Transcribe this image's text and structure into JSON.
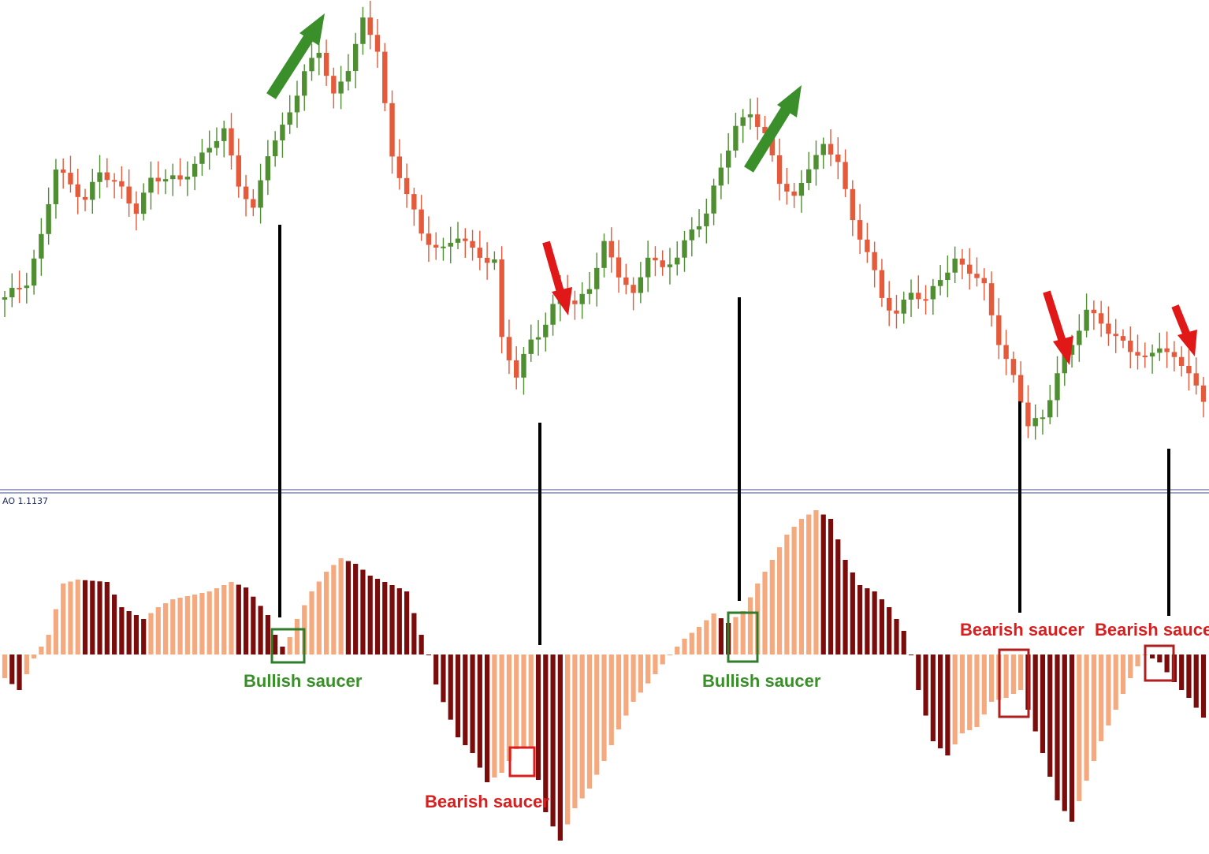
{
  "colors": {
    "bull_candle": "#4f8f32",
    "bear_candle": "#e55a3a",
    "ao_up": "#f4a97f",
    "ao_down": "#7a0c0c",
    "annotation_green": "#3a8f2a",
    "annotation_red": "#d81e1e",
    "separator": "#3b4a8c",
    "indicator_label": "#1a2a6a"
  },
  "indicator": {
    "label": "AO 1.1137"
  },
  "annotations": [
    {
      "name": "bullish-saucer-1",
      "text": "Bullish saucer",
      "kind": "bullish"
    },
    {
      "name": "bearish-saucer-1",
      "text": "Bearish saucer",
      "kind": "bearish"
    },
    {
      "name": "bullish-saucer-2",
      "text": "Bullish saucer",
      "kind": "bullish"
    },
    {
      "name": "bearish-saucer-2",
      "text": "Bearish saucer",
      "kind": "bearish"
    },
    {
      "name": "bearish-saucer-3",
      "text": "Bearish saucer",
      "kind": "bearish"
    }
  ],
  "chart_data": [
    {
      "type": "candlestick",
      "title": "",
      "legend": "none",
      "grid": false,
      "trend_arrows": [
        "up",
        "down",
        "up",
        "down",
        "down"
      ],
      "keyframes": [
        [
          0,
          380
        ],
        [
          3,
          355
        ],
        [
          5,
          300
        ],
        [
          7,
          215
        ],
        [
          9,
          235
        ],
        [
          11,
          250
        ],
        [
          13,
          220
        ],
        [
          16,
          240
        ],
        [
          18,
          265
        ],
        [
          20,
          230
        ],
        [
          24,
          225
        ],
        [
          27,
          200
        ],
        [
          30,
          165
        ],
        [
          32,
          230
        ],
        [
          34,
          270
        ],
        [
          36,
          195
        ],
        [
          38,
          160
        ],
        [
          41,
          95
        ],
        [
          43,
          65
        ],
        [
          45,
          120
        ],
        [
          47,
          85
        ],
        [
          49,
          30
        ],
        [
          51,
          60
        ],
        [
          53,
          200
        ],
        [
          55,
          245
        ],
        [
          57,
          300
        ],
        [
          60,
          315
        ],
        [
          62,
          300
        ],
        [
          64,
          320
        ],
        [
          67,
          330
        ],
        [
          68,
          430
        ],
        [
          70,
          480
        ],
        [
          72,
          430
        ],
        [
          74,
          410
        ],
        [
          76,
          370
        ],
        [
          78,
          390
        ],
        [
          80,
          360
        ],
        [
          82,
          310
        ],
        [
          84,
          350
        ],
        [
          86,
          375
        ],
        [
          88,
          320
        ],
        [
          90,
          345
        ],
        [
          92,
          325
        ],
        [
          94,
          290
        ],
        [
          96,
          270
        ],
        [
          98,
          215
        ],
        [
          100,
          160
        ],
        [
          102,
          140
        ],
        [
          104,
          175
        ],
        [
          106,
          230
        ],
        [
          108,
          250
        ],
        [
          110,
          210
        ],
        [
          112,
          190
        ],
        [
          114,
          200
        ],
        [
          116,
          280
        ],
        [
          118,
          320
        ],
        [
          120,
          380
        ],
        [
          122,
          395
        ],
        [
          124,
          370
        ],
        [
          126,
          385
        ],
        [
          128,
          350
        ],
        [
          130,
          330
        ],
        [
          132,
          345
        ],
        [
          134,
          365
        ],
        [
          136,
          430
        ],
        [
          138,
          480
        ],
        [
          140,
          540
        ],
        [
          142,
          530
        ],
        [
          144,
          470
        ],
        [
          146,
          440
        ],
        [
          148,
          395
        ],
        [
          150,
          405
        ],
        [
          152,
          430
        ],
        [
          154,
          445
        ],
        [
          156,
          455
        ],
        [
          158,
          435
        ],
        [
          160,
          460
        ],
        [
          162,
          470
        ],
        [
          164,
          510
        ]
      ]
    },
    {
      "type": "bar",
      "series": [
        {
          "name": "AO 1.1137"
        }
      ],
      "grid": false,
      "legend": "none",
      "ylim": [
        -240,
        190
      ],
      "x": [
        0,
        164
      ],
      "keyframes": [
        [
          0,
          -30
        ],
        [
          2,
          -45
        ],
        [
          4,
          -5
        ],
        [
          6,
          25
        ],
        [
          8,
          90
        ],
        [
          10,
          95
        ],
        [
          14,
          92
        ],
        [
          16,
          60
        ],
        [
          19,
          45
        ],
        [
          21,
          60
        ],
        [
          23,
          70
        ],
        [
          28,
          80
        ],
        [
          31,
          92
        ],
        [
          33,
          85
        ],
        [
          36,
          50
        ],
        [
          37,
          25
        ],
        [
          38,
          10
        ],
        [
          39,
          22
        ],
        [
          40,
          45
        ],
        [
          42,
          80
        ],
        [
          44,
          105
        ],
        [
          46,
          122
        ],
        [
          48,
          115
        ],
        [
          50,
          100
        ],
        [
          53,
          88
        ],
        [
          55,
          80
        ],
        [
          57,
          25
        ],
        [
          58,
          0
        ],
        [
          59,
          -38
        ],
        [
          62,
          -105
        ],
        [
          64,
          -125
        ],
        [
          66,
          -162
        ],
        [
          68,
          -150
        ],
        [
          70,
          -120
        ],
        [
          72,
          -118
        ],
        [
          74,
          -200
        ],
        [
          76,
          -236
        ],
        [
          78,
          -195
        ],
        [
          80,
          -170
        ],
        [
          82,
          -135
        ],
        [
          84,
          -95
        ],
        [
          86,
          -60
        ],
        [
          89,
          -25
        ],
        [
          91,
          0
        ],
        [
          93,
          20
        ],
        [
          95,
          35
        ],
        [
          97,
          52
        ],
        [
          99,
          40
        ],
        [
          101,
          55
        ],
        [
          103,
          90
        ],
        [
          105,
          120
        ],
        [
          107,
          152
        ],
        [
          109,
          172
        ],
        [
          111,
          183
        ],
        [
          113,
          172
        ],
        [
          115,
          120
        ],
        [
          117,
          88
        ],
        [
          119,
          80
        ],
        [
          121,
          60
        ],
        [
          123,
          30
        ],
        [
          124,
          0
        ],
        [
          125,
          -45
        ],
        [
          127,
          -110
        ],
        [
          129,
          -128
        ],
        [
          131,
          -100
        ],
        [
          133,
          -92
        ],
        [
          135,
          -60
        ],
        [
          137,
          -55
        ],
        [
          139,
          -45
        ],
        [
          140,
          -70
        ],
        [
          142,
          -125
        ],
        [
          144,
          -185
        ],
        [
          146,
          -212
        ],
        [
          148,
          -160
        ],
        [
          150,
          -110
        ],
        [
          152,
          -70
        ],
        [
          154,
          -30
        ],
        [
          156,
          0
        ],
        [
          158,
          -10
        ],
        [
          160,
          -35
        ],
        [
          162,
          -55
        ],
        [
          164,
          -80
        ]
      ]
    }
  ]
}
